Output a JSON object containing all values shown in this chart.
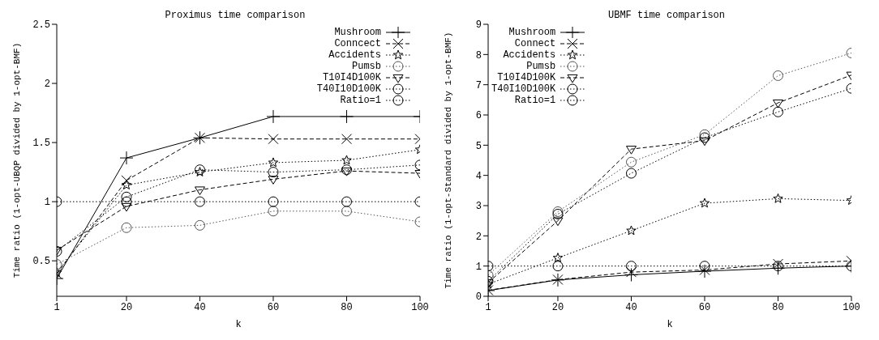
{
  "chart_data": [
    {
      "type": "line",
      "title": "Proximus time comparison",
      "xlabel": "k",
      "ylabel": "Time ratio (1-opt-UBQP divided by 1-opt-BMF)",
      "x": [
        1,
        20,
        40,
        60,
        80,
        100
      ],
      "xlim": [
        1,
        100
      ],
      "xticks": [
        1,
        20,
        40,
        60,
        80,
        100
      ],
      "ylim": [
        0.2,
        2.5
      ],
      "yticks": [
        0.5,
        1,
        1.5,
        2,
        2.5
      ],
      "grid": false,
      "legend": "top right",
      "series": [
        {
          "name": "Mushroom",
          "color": "#000000",
          "marker": "cross",
          "line_style": "solid",
          "values": [
            0.35,
            1.37,
            1.54,
            1.72,
            1.72,
            1.72
          ]
        },
        {
          "name": "Conncect",
          "color": "#000000",
          "marker": "x",
          "line_style": "dashed",
          "values": [
            0.39,
            1.18,
            1.54,
            1.53,
            1.53,
            1.53
          ]
        },
        {
          "name": "Accidents",
          "color": "#000000",
          "marker": "star",
          "line_style": "dotted",
          "values": [
            0.4,
            1.14,
            1.25,
            1.33,
            1.35,
            1.44
          ]
        },
        {
          "name": "Pumsb",
          "color": "#555555",
          "marker": "circle",
          "line_style": "dotted",
          "values": [
            0.47,
            0.78,
            0.8,
            0.92,
            0.92,
            0.83
          ]
        },
        {
          "name": "T10I4D100K",
          "color": "#000000",
          "marker": "triangle",
          "line_style": "dashed",
          "values": [
            0.59,
            0.96,
            1.1,
            1.19,
            1.26,
            1.24
          ]
        },
        {
          "name": "T40I10D100K",
          "color": "#000000",
          "marker": "circle",
          "line_style": "dotted",
          "values": [
            0.58,
            1.04,
            1.27,
            1.25,
            1.27,
            1.31
          ]
        },
        {
          "name": "Ratio=1",
          "color": "#000000",
          "marker": "circle",
          "line_style": "dotted",
          "values": [
            1,
            1,
            1,
            1,
            1,
            1
          ]
        }
      ]
    },
    {
      "type": "line",
      "title": "UBMF time comparison",
      "xlabel": "k",
      "ylabel": "Time ratio (1-opt-Standard divided by 1-opt-BMF)",
      "x": [
        1,
        20,
        40,
        60,
        80,
        100
      ],
      "xlim": [
        1,
        100
      ],
      "xticks": [
        1,
        20,
        40,
        60,
        80,
        100
      ],
      "ylim": [
        0,
        9
      ],
      "yticks": [
        0,
        1,
        2,
        3,
        4,
        5,
        6,
        7,
        8,
        9
      ],
      "grid": false,
      "legend": "top left",
      "series": [
        {
          "name": "Mushroom",
          "color": "#000000",
          "marker": "cross",
          "line_style": "solid",
          "values": [
            0.19,
            0.54,
            0.71,
            0.83,
            0.93,
            1.0
          ]
        },
        {
          "name": "Connect",
          "color": "#000000",
          "marker": "x",
          "line_style": "dashed",
          "values": [
            0.2,
            0.55,
            0.8,
            0.87,
            1.07,
            1.17
          ]
        },
        {
          "name": "Accidents",
          "color": "#000000",
          "marker": "star",
          "line_style": "dotted",
          "values": [
            0.4,
            1.27,
            2.17,
            3.08,
            3.23,
            3.17
          ]
        },
        {
          "name": "Pumsb",
          "color": "#555555",
          "marker": "circle",
          "line_style": "dotted",
          "values": [
            0.7,
            2.8,
            4.44,
            5.35,
            7.3,
            8.05
          ]
        },
        {
          "name": "T10I4D100K",
          "color": "#000000",
          "marker": "triangle",
          "line_style": "dashed",
          "values": [
            0.45,
            2.5,
            4.87,
            5.15,
            6.4,
            7.32
          ]
        },
        {
          "name": "T40I10D100K",
          "color": "#000000",
          "marker": "circle",
          "line_style": "dotted",
          "values": [
            0.5,
            2.72,
            4.07,
            5.25,
            6.1,
            6.88
          ]
        },
        {
          "name": "Ratio=1",
          "color": "#000000",
          "marker": "circle",
          "line_style": "dotted",
          "values": [
            1,
            1,
            1,
            1,
            1,
            1
          ]
        }
      ]
    }
  ]
}
